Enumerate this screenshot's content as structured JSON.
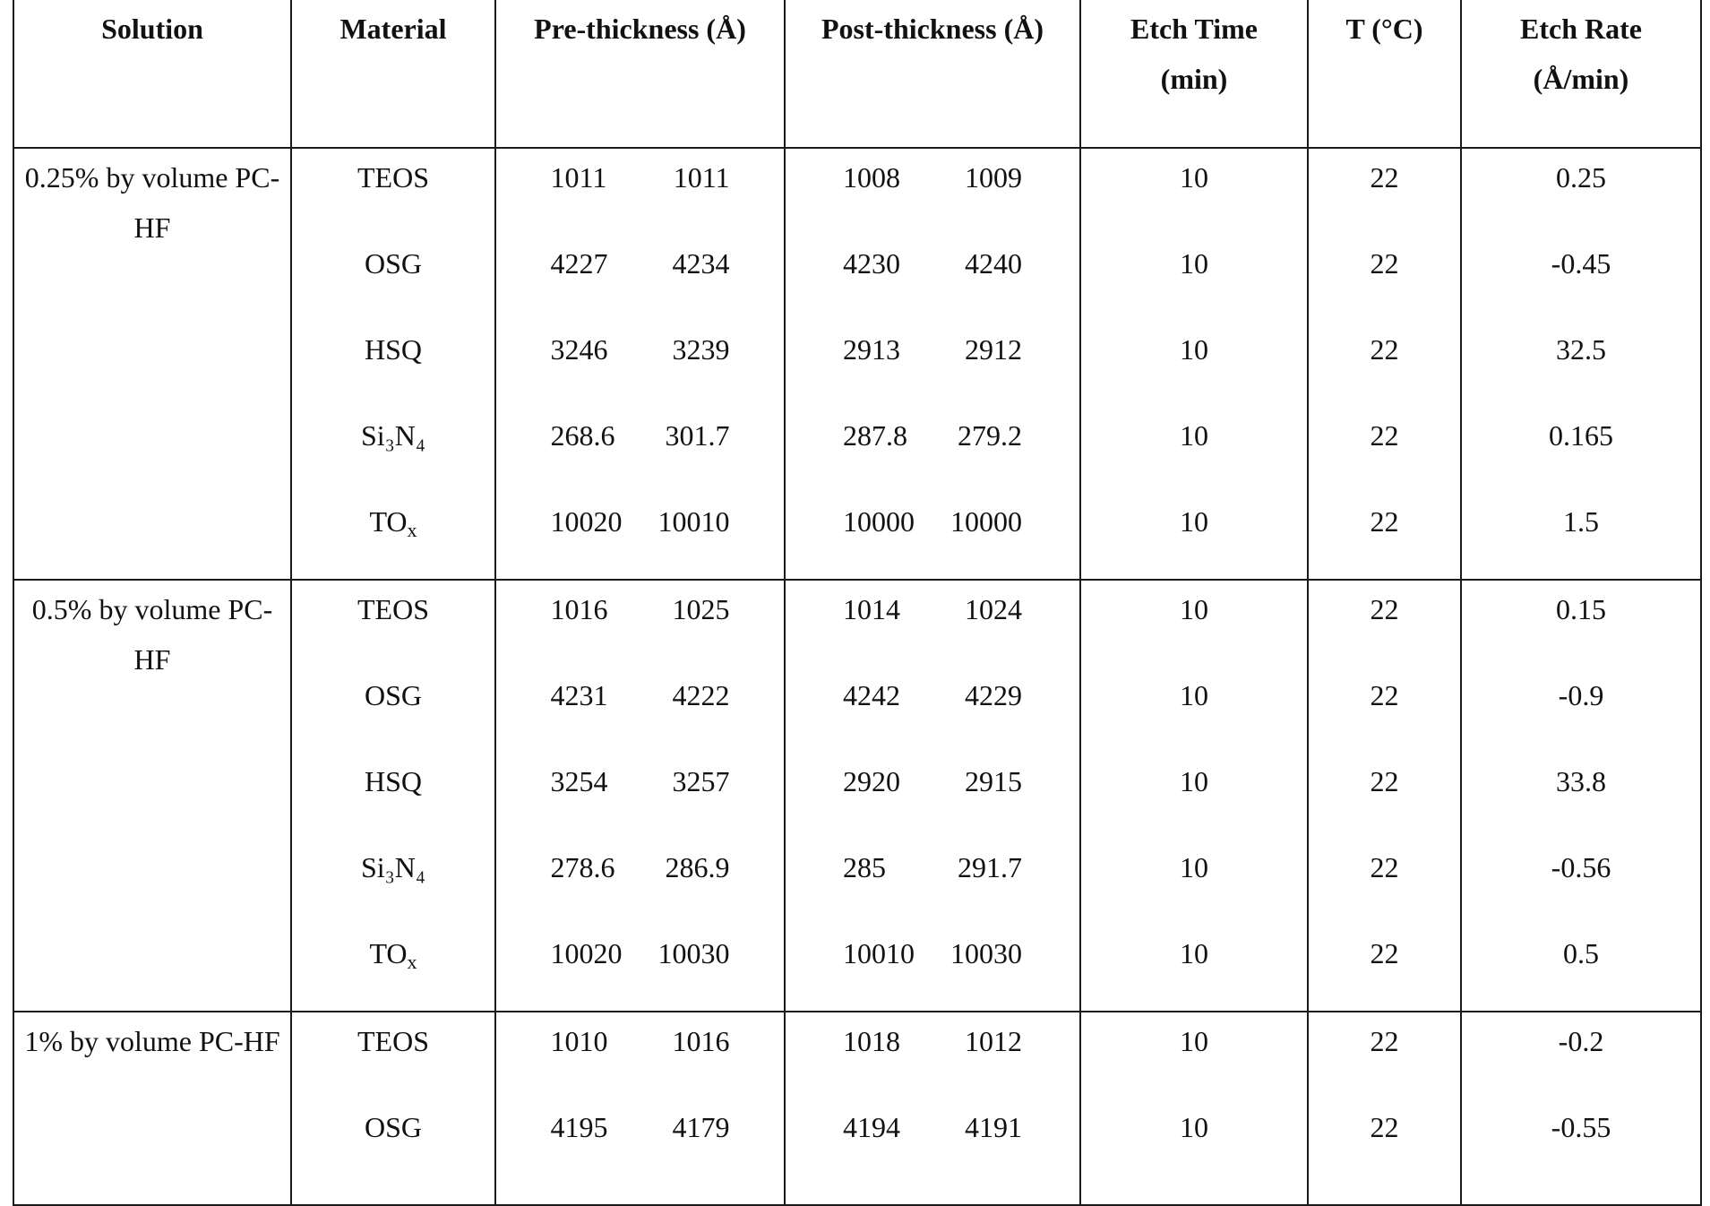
{
  "headers": [
    "Solution",
    "Material",
    "Pre-thickness (Å)",
    "Post-thickness (Å)",
    "Etch Time\n(min)",
    "T (°C)",
    "Etch Rate\n(Å/min)"
  ],
  "groups": [
    {
      "solution": "0.25% by volume PC-HF",
      "rows": [
        {
          "material": "TEOS",
          "material_sub": "",
          "pre": [
            "1011",
            "1011"
          ],
          "post": [
            "1008",
            "1009"
          ],
          "time": "10",
          "temp": "22",
          "rate": "0.25"
        },
        {
          "material": "OSG",
          "material_sub": "",
          "pre": [
            "4227",
            "4234"
          ],
          "post": [
            "4230",
            "4240"
          ],
          "time": "10",
          "temp": "22",
          "rate": "-0.45"
        },
        {
          "material": "HSQ",
          "material_sub": "",
          "pre": [
            "3246",
            "3239"
          ],
          "post": [
            "2913",
            "2912"
          ],
          "time": "10",
          "temp": "22",
          "rate": "32.5"
        },
        {
          "material": "Si₃N₄",
          "material_sub": "",
          "pre": [
            "268.6",
            "301.7"
          ],
          "post": [
            "287.8",
            "279.2"
          ],
          "time": "10",
          "temp": "22",
          "rate": "0.165"
        },
        {
          "material": "TO",
          "material_sub": "x",
          "pre": [
            "10020",
            "10010"
          ],
          "post": [
            "10000",
            "10000"
          ],
          "time": "10",
          "temp": "22",
          "rate": "1.5"
        }
      ]
    },
    {
      "solution": "0.5% by volume PC-HF",
      "rows": [
        {
          "material": "TEOS",
          "material_sub": "",
          "pre": [
            "1016",
            "1025"
          ],
          "post": [
            "1014",
            "1024"
          ],
          "time": "10",
          "temp": "22",
          "rate": "0.15"
        },
        {
          "material": "OSG",
          "material_sub": "",
          "pre": [
            "4231",
            "4222"
          ],
          "post": [
            "4242",
            "4229"
          ],
          "time": "10",
          "temp": "22",
          "rate": "-0.9"
        },
        {
          "material": "HSQ",
          "material_sub": "",
          "pre": [
            "3254",
            "3257"
          ],
          "post": [
            "2920",
            "2915"
          ],
          "time": "10",
          "temp": "22",
          "rate": "33.8"
        },
        {
          "material": "Si₃N₄",
          "material_sub": "",
          "pre": [
            "278.6",
            "286.9"
          ],
          "post": [
            "285",
            "291.7"
          ],
          "time": "10",
          "temp": "22",
          "rate": "-0.56"
        },
        {
          "material": "TO",
          "material_sub": "x",
          "pre": [
            "10020",
            "10030"
          ],
          "post": [
            "10010",
            "10030"
          ],
          "time": "10",
          "temp": "22",
          "rate": "0.5"
        }
      ]
    },
    {
      "solution": "1% by volume PC-HF",
      "rows": [
        {
          "material": "TEOS",
          "material_sub": "",
          "pre": [
            "1010",
            "1016"
          ],
          "post": [
            "1018",
            "1012"
          ],
          "time": "10",
          "temp": "22",
          "rate": "-0.2"
        },
        {
          "material": "OSG",
          "material_sub": "",
          "pre": [
            "4195",
            "4179"
          ],
          "post": [
            "4194",
            "4191"
          ],
          "time": "10",
          "temp": "22",
          "rate": "-0.55"
        }
      ]
    }
  ]
}
